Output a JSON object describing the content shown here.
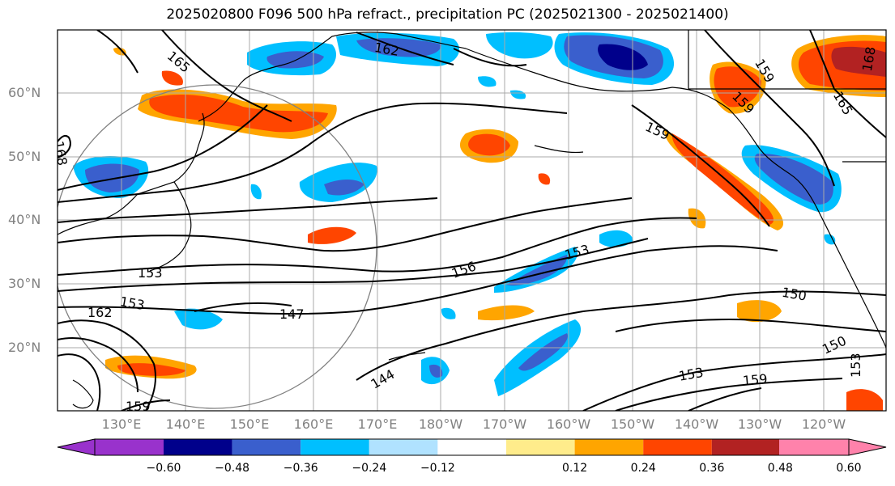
{
  "title": "2025020800 F096 500 hPa refract., precipitation PC (2025021300 - 2025021400)",
  "lat_labels": [
    "60°N",
    "50°N",
    "40°N",
    "30°N",
    "20°N"
  ],
  "lon_labels": [
    "130°E",
    "140°E",
    "150°E",
    "160°E",
    "170°E",
    "180°W",
    "170°W",
    "160°W",
    "150°W",
    "140°W",
    "130°W",
    "120°W"
  ],
  "contour_labels": [
    "165",
    "162",
    "159",
    "168",
    "153",
    "153",
    "162",
    "147",
    "144",
    "159",
    "156",
    "153",
    "150",
    "150",
    "153",
    "159",
    "168",
    "165",
    "159",
    "153",
    "159"
  ],
  "colorbar": {
    "ticks": [
      "−0.60",
      "−0.48",
      "−0.36",
      "−0.24",
      "−0.12",
      "0.12",
      "0.24",
      "0.36",
      "0.48",
      "0.60"
    ],
    "colors": [
      "#9932CC",
      "#00008B",
      "#3A5FCD",
      "#00BFFF",
      "#B0E2FF",
      "#FFFFFF",
      "#FFEC8B",
      "#FFA500",
      "#FF4500",
      "#B22222",
      "#FF82AB"
    ]
  }
}
